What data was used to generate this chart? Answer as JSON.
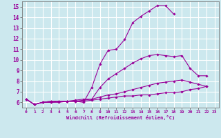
{
  "xlabel": "Windchill (Refroidissement éolien,°C)",
  "bg_color": "#cce8ee",
  "grid_color": "#ffffff",
  "line_color": "#990099",
  "xlim": [
    -0.5,
    23.5
  ],
  "ylim": [
    5.5,
    15.5
  ],
  "xticks": [
    0,
    1,
    2,
    3,
    4,
    5,
    6,
    7,
    8,
    9,
    10,
    11,
    12,
    13,
    14,
    15,
    16,
    17,
    18,
    19,
    20,
    21,
    22,
    23
  ],
  "yticks": [
    6,
    7,
    8,
    9,
    10,
    11,
    12,
    13,
    14,
    15
  ],
  "lines": [
    {
      "x": [
        0,
        1,
        2,
        3,
        4,
        5,
        6,
        7,
        8,
        9,
        10,
        11,
        12,
        13,
        14,
        15,
        16,
        17,
        18
      ],
      "y": [
        6.3,
        5.8,
        6.0,
        6.1,
        6.1,
        6.1,
        6.1,
        6.0,
        7.4,
        9.6,
        10.9,
        11.0,
        11.9,
        13.5,
        14.1,
        14.6,
        15.1,
        15.1,
        14.3
      ]
    },
    {
      "x": [
        0,
        1,
        2,
        3,
        4,
        5,
        6,
        7,
        8,
        9,
        10,
        11,
        12,
        13,
        14,
        15,
        16,
        17,
        18,
        19,
        20,
        21,
        22
      ],
      "y": [
        6.3,
        5.8,
        6.0,
        6.1,
        6.1,
        6.1,
        6.2,
        6.3,
        6.3,
        7.4,
        8.2,
        8.7,
        9.2,
        9.7,
        10.1,
        10.4,
        10.5,
        10.4,
        10.3,
        10.4,
        9.2,
        8.5,
        8.5
      ]
    },
    {
      "x": [
        0,
        1,
        2,
        3,
        4,
        5,
        6,
        7,
        8,
        9,
        10,
        11,
        12,
        13,
        14,
        15,
        16,
        17,
        18,
        19,
        20,
        21,
        22
      ],
      "y": [
        6.3,
        5.8,
        6.0,
        6.0,
        6.1,
        6.1,
        6.1,
        6.2,
        6.3,
        6.5,
        6.7,
        6.8,
        7.0,
        7.2,
        7.4,
        7.6,
        7.8,
        7.9,
        8.0,
        8.1,
        7.9,
        7.7,
        7.5
      ]
    },
    {
      "x": [
        0,
        1,
        2,
        3,
        4,
        5,
        6,
        7,
        8,
        9,
        10,
        11,
        12,
        13,
        14,
        15,
        16,
        17,
        18,
        19,
        20,
        21,
        22
      ],
      "y": [
        6.3,
        5.8,
        6.0,
        6.0,
        6.0,
        6.1,
        6.1,
        6.1,
        6.2,
        6.3,
        6.4,
        6.5,
        6.6,
        6.6,
        6.7,
        6.7,
        6.8,
        6.9,
        6.9,
        7.0,
        7.2,
        7.3,
        7.5
      ]
    }
  ]
}
